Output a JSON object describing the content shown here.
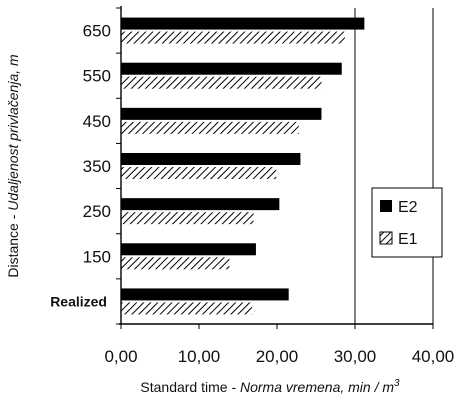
{
  "chart_data": {
    "type": "bar",
    "orientation": "horizontal",
    "categories": [
      "650",
      "550",
      "450",
      "350",
      "250",
      "150",
      "Realized"
    ],
    "series": [
      {
        "name": "E2",
        "values": [
          31.2,
          28.3,
          25.7,
          23.0,
          20.3,
          17.3,
          21.5
        ],
        "fill": "#000000"
      },
      {
        "name": "E1",
        "values": [
          28.7,
          25.7,
          22.8,
          19.9,
          17.0,
          13.9,
          16.8
        ],
        "fill": "hatched"
      }
    ],
    "xticks": [
      "0,00",
      "10,00",
      "20,00",
      "30,00",
      "40,00"
    ],
    "xlim": [
      0,
      40
    ],
    "xlabel": {
      "plain": "Standard time - ",
      "italic": "Norma vremena, min / m",
      "sup": "3"
    },
    "ylabel": {
      "plain": "Distance - ",
      "italic": "Udaljenost privlačenja, m"
    },
    "gridlines": [
      30
    ],
    "legend": {
      "position": "right",
      "entries": [
        "E2",
        "E1"
      ]
    }
  }
}
